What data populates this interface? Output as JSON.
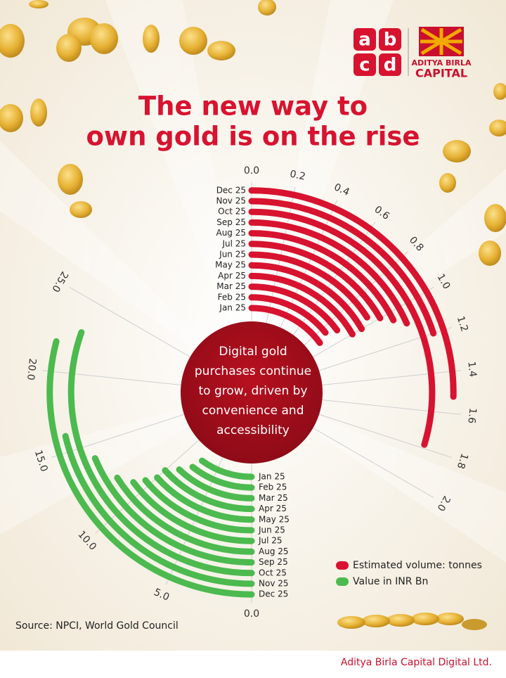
{
  "logo": {
    "letters": [
      "a",
      "b",
      "c",
      "d"
    ],
    "brand_line1": "ADITYA BIRLA",
    "brand_line2": "CAPITAL"
  },
  "chart_data": {
    "type": "radial-bar",
    "title": [
      "The new way to",
      "own gold is on the rise"
    ],
    "annotation": [
      "Digital gold",
      "purchases continue",
      "to grow, driven by",
      "convenience and",
      "accessibility"
    ],
    "categories": [
      "Jan 25",
      "Feb 25",
      "Mar 25",
      "Apr 25",
      "May 25",
      "Jun 25",
      "Jul 25",
      "Aug 25",
      "Sep 25",
      "Oct 25",
      "Nov 25",
      "Dec 25"
    ],
    "series": [
      {
        "name": "Estimated volume: tonnes",
        "color": "#d7132f",
        "axis": "y",
        "values": [
          0.9,
          0.85,
          0.9,
          1.0,
          1.0,
          0.95,
          1.0,
          1.05,
          1.1,
          1.78,
          1.2,
          1.52
        ]
      },
      {
        "name": "Value in INR Bn",
        "color": "#4cba4f",
        "axis": "y2",
        "values": [
          7.5,
          8,
          9,
          10,
          10,
          10.5,
          11,
          12,
          14,
          22.8,
          16,
          21.8
        ]
      }
    ],
    "ylim": [
      0,
      2
    ],
    "yticks": [
      {
        "value": 0,
        "label": "0.0"
      },
      {
        "value": 0.2,
        "label": "0.2"
      },
      {
        "value": 0.4,
        "label": "0.4"
      },
      {
        "value": 0.6,
        "label": "0.6"
      },
      {
        "value": 0.8,
        "label": "0.8"
      },
      {
        "value": 1,
        "label": "1.0"
      },
      {
        "value": 1.2,
        "label": "1.2"
      },
      {
        "value": 1.4,
        "label": "1.4"
      },
      {
        "value": 1.6,
        "label": "1.6"
      },
      {
        "value": 1.8,
        "label": "1.8"
      },
      {
        "value": 2,
        "label": "2.0"
      }
    ],
    "y2lim": [
      0,
      25
    ],
    "y2ticks": [
      {
        "value": 0,
        "label": "0.0"
      },
      {
        "value": 5,
        "label": "5.0"
      },
      {
        "value": 10,
        "label": "10.0"
      },
      {
        "value": 15,
        "label": "15.0"
      },
      {
        "value": 20,
        "label": "20.0"
      },
      {
        "value": 25,
        "label": "25.0"
      }
    ],
    "grid": true,
    "legend": "bottom-right",
    "source": "Source: NPCI, World Gold Council"
  },
  "footer": "Aditya Birla Capital Digital Ltd."
}
